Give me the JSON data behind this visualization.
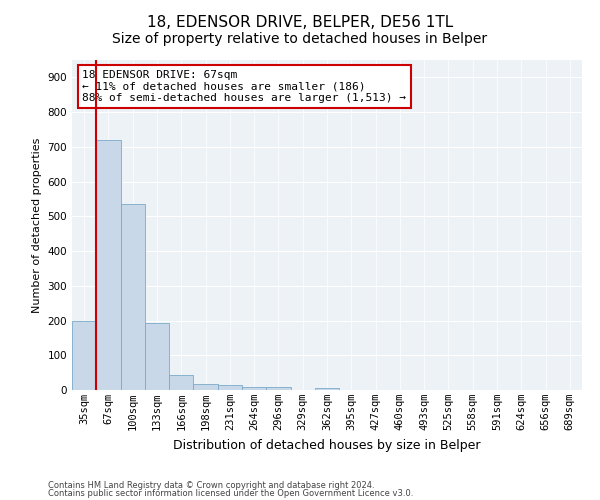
{
  "title": "18, EDENSOR DRIVE, BELPER, DE56 1TL",
  "subtitle": "Size of property relative to detached houses in Belper",
  "xlabel": "Distribution of detached houses by size in Belper",
  "ylabel": "Number of detached properties",
  "categories": [
    "35sqm",
    "67sqm",
    "100sqm",
    "133sqm",
    "166sqm",
    "198sqm",
    "231sqm",
    "264sqm",
    "296sqm",
    "329sqm",
    "362sqm",
    "395sqm",
    "427sqm",
    "460sqm",
    "493sqm",
    "525sqm",
    "558sqm",
    "591sqm",
    "624sqm",
    "656sqm",
    "689sqm"
  ],
  "values": [
    200,
    720,
    535,
    193,
    42,
    17,
    13,
    9,
    8,
    0,
    7,
    0,
    0,
    0,
    0,
    0,
    0,
    0,
    0,
    0,
    0
  ],
  "bar_color": "#c8d8e8",
  "bar_edge_color": "#7aaac8",
  "highlight_index": 1,
  "highlight_color": "#cc0000",
  "annotation_line1": "18 EDENSOR DRIVE: 67sqm",
  "annotation_line2": "← 11% of detached houses are smaller (186)",
  "annotation_line3": "88% of semi-detached houses are larger (1,513) →",
  "annotation_box_color": "#ffffff",
  "annotation_box_edge": "#cc0000",
  "ylim": [
    0,
    950
  ],
  "yticks": [
    0,
    100,
    200,
    300,
    400,
    500,
    600,
    700,
    800,
    900
  ],
  "footer1": "Contains HM Land Registry data © Crown copyright and database right 2024.",
  "footer2": "Contains public sector information licensed under the Open Government Licence v3.0.",
  "background_color": "#edf2f7",
  "title_fontsize": 11,
  "subtitle_fontsize": 10,
  "ylabel_fontsize": 8,
  "xlabel_fontsize": 9,
  "tick_fontsize": 7.5,
  "annotation_fontsize": 8,
  "footer_fontsize": 6
}
